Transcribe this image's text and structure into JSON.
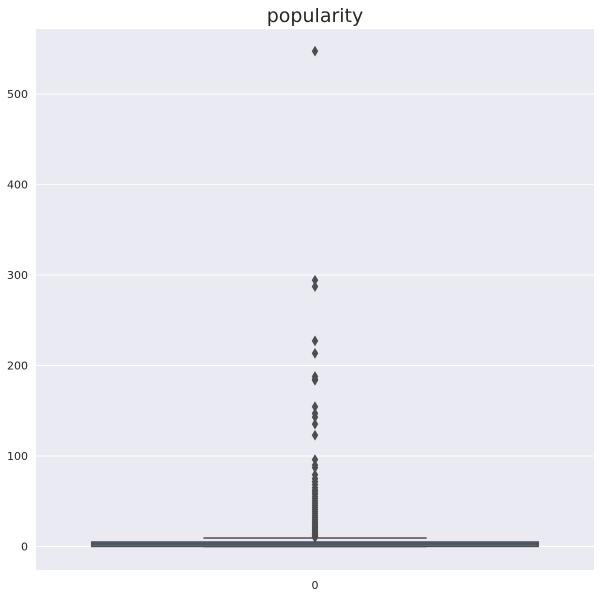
{
  "chart_data": {
    "type": "box",
    "title": "popularity",
    "xlabel": "",
    "ylabel": "",
    "x_tick_labels": [
      "0"
    ],
    "ylim": [
      -26,
      572
    ],
    "y_ticks": [
      0,
      100,
      200,
      300,
      400,
      500
    ],
    "grid": true,
    "background": "#eaeaf2",
    "box_color": "#4c72b0",
    "line_color": "#4d4d4d",
    "box": {
      "category": "0",
      "min": 0,
      "q1": 0.6,
      "median": 2.8,
      "q3": 4.4,
      "max": 9.4
    },
    "outliers": [
      547.5,
      294.3,
      287.3,
      227.3,
      213.5,
      187.9,
      185.0,
      183.7,
      154.5,
      147.1,
      143.0,
      135.3,
      123.0,
      96.0,
      89.9,
      87.1,
      79.3,
      75.0,
      71.6,
      68.5,
      65.0,
      62.3,
      60.1,
      57.8,
      55.2,
      52.9,
      50.4,
      48.0,
      45.6,
      43.3,
      41.0,
      38.7,
      36.5,
      34.3,
      32.2,
      30.1,
      28.1,
      26.2,
      24.3,
      22.5,
      20.8,
      19.1,
      17.5,
      16.0,
      14.6,
      13.2,
      12.0,
      10.8,
      9.9
    ]
  }
}
